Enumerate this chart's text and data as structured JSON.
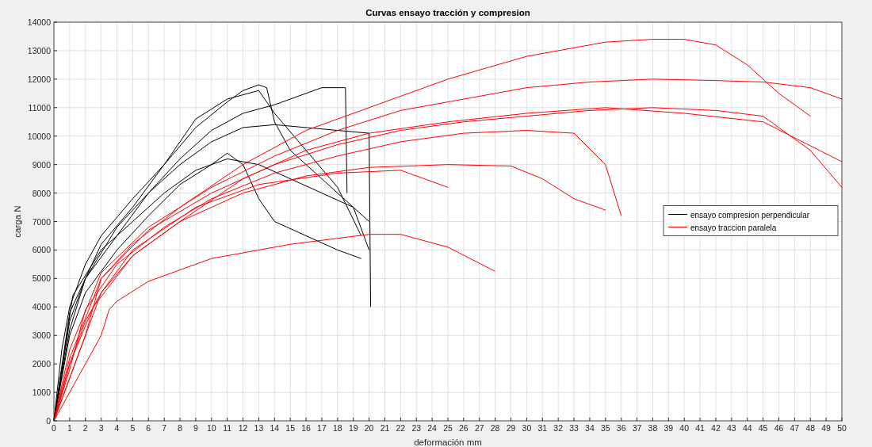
{
  "chart_data": {
    "type": "line",
    "title": "Curvas ensayo tracción y compresion",
    "xlabel": "deformación mm",
    "ylabel": "carga N",
    "xlim": [
      0,
      50
    ],
    "xticks": [
      0,
      1,
      2,
      3,
      4,
      5,
      6,
      7,
      8,
      9,
      10,
      11,
      12,
      13,
      14,
      15,
      16,
      17,
      18,
      19,
      20,
      21,
      22,
      23,
      24,
      25,
      26,
      27,
      28,
      29,
      30,
      31,
      32,
      33,
      34,
      35,
      36,
      37,
      38,
      39,
      40,
      41,
      42,
      43,
      44,
      45,
      46,
      47,
      48,
      49,
      50
    ],
    "ylim": [
      0,
      14000
    ],
    "yticks": [
      0,
      1000,
      2000,
      3000,
      4000,
      5000,
      6000,
      7000,
      8000,
      9000,
      10000,
      11000,
      12000,
      13000,
      14000
    ],
    "grid": true,
    "legend": "right",
    "series": [
      {
        "name": "ensayo compresion perpendicular",
        "color": "#000000",
        "x": [
          0,
          0.5,
          1,
          2,
          3,
          5,
          7,
          9,
          11,
          12,
          13,
          13.5,
          14,
          15,
          17,
          19,
          20
        ],
        "values": [
          0,
          2500,
          4000,
          5500,
          6500,
          7800,
          9000,
          10300,
          11200,
          11600,
          11800,
          11700,
          10500,
          9500,
          8500,
          7500,
          7000
        ]
      },
      {
        "color": "#000000",
        "x": [
          0,
          1,
          2,
          4,
          6,
          8,
          10,
          12,
          14,
          17,
          18.5,
          18.6
        ],
        "values": [
          0,
          3500,
          5000,
          6500,
          8000,
          9200,
          10200,
          10800,
          11100,
          11700,
          11700,
          8000
        ]
      },
      {
        "color": "#000000",
        "x": [
          0,
          1,
          2,
          4,
          6,
          8,
          10,
          11,
          12,
          13,
          14,
          16,
          18,
          19.5
        ],
        "values": [
          0,
          3000,
          4500,
          6000,
          7200,
          8300,
          9000,
          9400,
          9000,
          7800,
          7000,
          6500,
          6000,
          5700
        ]
      },
      {
        "color": "#000000",
        "x": [
          0,
          1,
          2,
          4,
          6,
          8,
          10,
          12,
          14,
          16,
          18,
          20,
          20.1
        ],
        "values": [
          0,
          3200,
          5000,
          6800,
          8000,
          9000,
          9800,
          10300,
          10400,
          10300,
          10200,
          10100,
          4000
        ]
      },
      {
        "color": "#000000",
        "x": [
          0,
          1.2,
          3,
          5,
          7,
          9,
          11,
          13,
          15,
          17,
          19,
          20
        ],
        "values": [
          0,
          4400,
          6000,
          7000,
          8000,
          8800,
          9200,
          9000,
          8500,
          8000,
          7500,
          6000
        ]
      },
      {
        "color": "#000000",
        "x": [
          0,
          1,
          3,
          5,
          7,
          9,
          11,
          13,
          14,
          16,
          18,
          19.5
        ],
        "values": [
          0,
          3800,
          6200,
          7500,
          9000,
          10600,
          11300,
          11600,
          10800,
          9500,
          8200,
          6500
        ]
      },
      {
        "name": "ensayo traccion paralela",
        "color": "#ff0000",
        "x": [
          0,
          1,
          2,
          3,
          5,
          8,
          12,
          16,
          20,
          25,
          30,
          35,
          38,
          40,
          42,
          44,
          46,
          48
        ],
        "values": [
          0,
          1500,
          3000,
          5000,
          6200,
          7500,
          9000,
          10200,
          11000,
          12000,
          12800,
          13300,
          13400,
          13400,
          13200,
          12500,
          11500,
          10700
        ]
      },
      {
        "color": "#ff0000",
        "x": [
          0,
          1,
          2,
          3,
          3.5,
          4,
          6,
          10,
          15,
          20,
          22,
          25,
          28
        ],
        "values": [
          0,
          1000,
          2000,
          3000,
          3900,
          4200,
          4900,
          5700,
          6200,
          6550,
          6550,
          6100,
          5250
        ]
      },
      {
        "color": "#ff0000",
        "x": [
          0,
          1,
          2,
          3,
          5,
          8,
          12,
          16,
          20,
          25,
          30,
          35,
          40,
          45,
          50
        ],
        "values": [
          0,
          2000,
          3500,
          4500,
          5800,
          7000,
          8500,
          9500,
          10100,
          10500,
          10800,
          11000,
          10800,
          10500,
          9100
        ]
      },
      {
        "color": "#ff0000",
        "x": [
          0,
          1,
          2,
          4,
          7,
          10,
          14,
          18,
          22,
          26,
          30,
          33,
          35,
          36
        ],
        "values": [
          0,
          1800,
          3900,
          5500,
          6800,
          7800,
          8700,
          9300,
          9800,
          10100,
          10200,
          10100,
          9000,
          7200
        ]
      },
      {
        "color": "#ff0000",
        "x": [
          0,
          1,
          3,
          6,
          10,
          14,
          18,
          22,
          26,
          30,
          34,
          38,
          42,
          45,
          48,
          50
        ],
        "values": [
          0,
          2500,
          5200,
          6800,
          8200,
          9300,
          10200,
          10900,
          11300,
          11700,
          11900,
          12000,
          11950,
          11900,
          11700,
          11300
        ]
      },
      {
        "color": "#ff0000",
        "x": [
          0,
          1,
          2.5,
          5,
          8,
          12,
          16,
          20,
          25,
          29,
          31,
          33,
          35
        ],
        "values": [
          0,
          2000,
          4000,
          5800,
          7000,
          8000,
          8600,
          8900,
          9000,
          8950,
          8500,
          7800,
          7400
        ]
      },
      {
        "color": "#ff0000",
        "x": [
          0,
          1,
          3,
          6,
          10,
          14,
          18,
          22,
          26,
          30,
          34,
          38,
          42,
          45,
          48,
          50
        ],
        "values": [
          0,
          2200,
          5000,
          6700,
          8000,
          9000,
          9700,
          10200,
          10500,
          10700,
          10900,
          11000,
          10900,
          10700,
          9500,
          8200
        ]
      },
      {
        "color": "#ff0000",
        "x": [
          0,
          1,
          2,
          3,
          5,
          9,
          13,
          18,
          22,
          25
        ],
        "values": [
          0,
          1500,
          3000,
          4500,
          6000,
          7500,
          8300,
          8700,
          8800,
          8200
        ]
      }
    ]
  }
}
